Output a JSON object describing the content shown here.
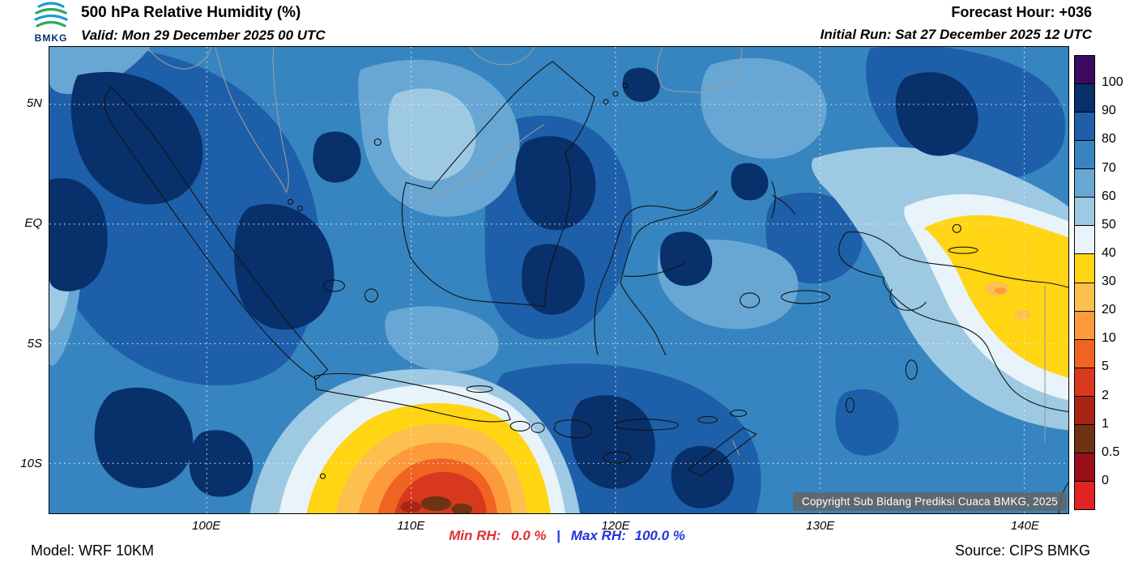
{
  "header": {
    "logo_text": "BMKG",
    "title": "500 hPa Relative Humidity (%)",
    "valid": "Valid: Mon 29 December 2025 00 UTC",
    "forecast_hour": "Forecast Hour: +036",
    "initial_run": "Initial Run: Sat 27 December 2025 12 UTC"
  },
  "map": {
    "lat_labels": [
      "5N",
      "EQ",
      "5S",
      "10S"
    ],
    "lon_labels": [
      "100E",
      "110E",
      "120E",
      "130E",
      "140E"
    ],
    "copyright": "Copyright Sub Bidang Prediksi Cuaca BMKG, 2025"
  },
  "legend": {
    "tick_labels": [
      "100",
      "90",
      "80",
      "70",
      "60",
      "50",
      "40",
      "30",
      "20",
      "10",
      "5",
      "2",
      "1",
      "0.5",
      "0"
    ],
    "colors": [
      "#3b0b60",
      "#08306b",
      "#1e5fa9",
      "#3685c0",
      "#68a7d3",
      "#9dc9e3",
      "#e8f3fa",
      "#ffd514",
      "#fdc04e",
      "#fd9a3c",
      "#f06423",
      "#d8391e",
      "#a82414",
      "#6e3313",
      "#97101a",
      "#e32222"
    ]
  },
  "footer": {
    "model": "Model: WRF 10KM",
    "min_label": "Min RH:",
    "min_value": "0.0 %",
    "separator": "|",
    "max_label": "Max RH:",
    "max_value": "100.0 %",
    "min_color": "#e03030",
    "max_color": "#2233dd",
    "source": "Source: CIPS BMKG"
  }
}
